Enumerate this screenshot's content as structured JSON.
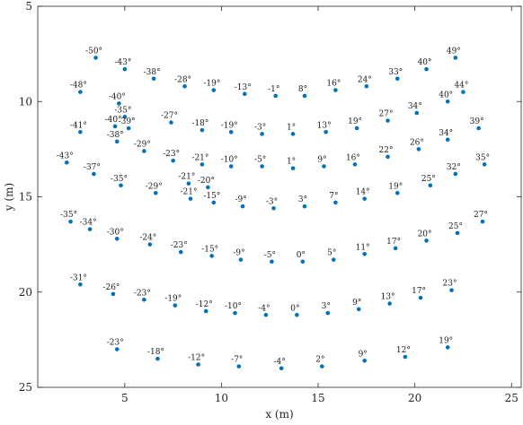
{
  "chart_data": {
    "type": "scatter",
    "title": "",
    "xlabel": "x (m)",
    "ylabel": "y (m)",
    "xlim": [
      0.5,
      25.5
    ],
    "ylim": [
      5,
      25
    ],
    "y_reversed": true,
    "grid": false,
    "legend": "none",
    "marker_color": "#0072BD",
    "xticks": [
      "5",
      "10",
      "15",
      "20",
      "25"
    ],
    "yticks": [
      "5",
      "10",
      "15",
      "20",
      "25"
    ],
    "points": [
      {
        "x": 3.5,
        "y": 7.7,
        "label": "-50°"
      },
      {
        "x": 5.0,
        "y": 8.3,
        "label": "-43°"
      },
      {
        "x": 6.5,
        "y": 8.8,
        "label": "-38°"
      },
      {
        "x": 8.1,
        "y": 9.2,
        "label": "-28°"
      },
      {
        "x": 9.6,
        "y": 9.4,
        "label": "-19°"
      },
      {
        "x": 11.2,
        "y": 9.6,
        "label": "-13°"
      },
      {
        "x": 12.8,
        "y": 9.7,
        "label": "-1°"
      },
      {
        "x": 14.3,
        "y": 9.7,
        "label": "8°"
      },
      {
        "x": 15.9,
        "y": 9.4,
        "label": "16°"
      },
      {
        "x": 17.5,
        "y": 9.2,
        "label": "24°"
      },
      {
        "x": 19.1,
        "y": 8.8,
        "label": "33°"
      },
      {
        "x": 20.6,
        "y": 8.3,
        "label": "40°"
      },
      {
        "x": 22.1,
        "y": 7.7,
        "label": "49°"
      },
      {
        "x": 2.7,
        "y": 9.5,
        "label": "-48°"
      },
      {
        "x": 4.7,
        "y": 10.1,
        "label": "-40°"
      },
      {
        "x": 5.0,
        "y": 10.8,
        "label": "-35°"
      },
      {
        "x": 4.5,
        "y": 11.3,
        "label": "-40°"
      },
      {
        "x": 5.2,
        "y": 11.4,
        "label": "-39°"
      },
      {
        "x": 2.7,
        "y": 11.6,
        "label": "-41°"
      },
      {
        "x": 4.6,
        "y": 12.1,
        "label": "-38°"
      },
      {
        "x": 7.4,
        "y": 11.1,
        "label": "-27°"
      },
      {
        "x": 9.0,
        "y": 11.5,
        "label": "-18°"
      },
      {
        "x": 10.5,
        "y": 11.6,
        "label": "-19°"
      },
      {
        "x": 12.1,
        "y": 11.7,
        "label": "-3°"
      },
      {
        "x": 13.7,
        "y": 11.7,
        "label": "1°"
      },
      {
        "x": 15.4,
        "y": 11.6,
        "label": "13°"
      },
      {
        "x": 17.0,
        "y": 11.4,
        "label": "19°"
      },
      {
        "x": 18.6,
        "y": 11.0,
        "label": "27°"
      },
      {
        "x": 20.1,
        "y": 10.6,
        "label": "34°"
      },
      {
        "x": 21.7,
        "y": 10.0,
        "label": "40°"
      },
      {
        "x": 22.5,
        "y": 9.5,
        "label": "44°"
      },
      {
        "x": 23.3,
        "y": 11.4,
        "label": "39°"
      },
      {
        "x": 21.7,
        "y": 12.0,
        "label": "34°"
      },
      {
        "x": 2.0,
        "y": 13.2,
        "label": "-43°"
      },
      {
        "x": 3.4,
        "y": 13.8,
        "label": "-37°"
      },
      {
        "x": 6.0,
        "y": 12.6,
        "label": "-29°"
      },
      {
        "x": 7.5,
        "y": 13.1,
        "label": "-23°"
      },
      {
        "x": 9.0,
        "y": 13.3,
        "label": "-21°"
      },
      {
        "x": 10.5,
        "y": 13.4,
        "label": "-10°"
      },
      {
        "x": 12.1,
        "y": 13.4,
        "label": "-5°"
      },
      {
        "x": 13.7,
        "y": 13.5,
        "label": "1°"
      },
      {
        "x": 15.3,
        "y": 13.4,
        "label": "9°"
      },
      {
        "x": 16.9,
        "y": 13.3,
        "label": "16°"
      },
      {
        "x": 18.6,
        "y": 12.9,
        "label": "22°"
      },
      {
        "x": 20.2,
        "y": 12.5,
        "label": "26°"
      },
      {
        "x": 22.1,
        "y": 13.8,
        "label": "32°"
      },
      {
        "x": 23.6,
        "y": 13.3,
        "label": "35°"
      },
      {
        "x": 4.8,
        "y": 14.4,
        "label": "-35°"
      },
      {
        "x": 6.6,
        "y": 14.8,
        "label": "-29°"
      },
      {
        "x": 8.3,
        "y": 14.3,
        "label": "-21°"
      },
      {
        "x": 9.3,
        "y": 14.5,
        "label": "-20°"
      },
      {
        "x": 8.4,
        "y": 15.1,
        "label": "-21°"
      },
      {
        "x": 9.6,
        "y": 15.3,
        "label": "-15°"
      },
      {
        "x": 11.1,
        "y": 15.5,
        "label": "-9°"
      },
      {
        "x": 12.7,
        "y": 15.6,
        "label": "-3°"
      },
      {
        "x": 14.3,
        "y": 15.5,
        "label": "3°"
      },
      {
        "x": 15.9,
        "y": 15.3,
        "label": "7°"
      },
      {
        "x": 17.4,
        "y": 15.1,
        "label": "14°"
      },
      {
        "x": 19.1,
        "y": 14.8,
        "label": "19°"
      },
      {
        "x": 20.8,
        "y": 14.4,
        "label": "25°"
      },
      {
        "x": 2.2,
        "y": 16.3,
        "label": "-35°"
      },
      {
        "x": 3.2,
        "y": 16.7,
        "label": "-34°"
      },
      {
        "x": 4.6,
        "y": 17.2,
        "label": "-30°"
      },
      {
        "x": 6.3,
        "y": 17.5,
        "label": "-24°"
      },
      {
        "x": 7.9,
        "y": 17.9,
        "label": "-23°"
      },
      {
        "x": 9.5,
        "y": 18.1,
        "label": "-15°"
      },
      {
        "x": 11.0,
        "y": 18.3,
        "label": "-9°"
      },
      {
        "x": 12.6,
        "y": 18.4,
        "label": "-5°"
      },
      {
        "x": 14.2,
        "y": 18.4,
        "label": "0°"
      },
      {
        "x": 15.8,
        "y": 18.3,
        "label": "5°"
      },
      {
        "x": 17.4,
        "y": 18.0,
        "label": "11°"
      },
      {
        "x": 19.0,
        "y": 17.7,
        "label": "17°"
      },
      {
        "x": 20.6,
        "y": 17.3,
        "label": "20°"
      },
      {
        "x": 22.2,
        "y": 16.9,
        "label": "25°"
      },
      {
        "x": 23.5,
        "y": 16.3,
        "label": "27°"
      },
      {
        "x": 2.7,
        "y": 19.6,
        "label": "-31°"
      },
      {
        "x": 4.4,
        "y": 20.1,
        "label": "-26°"
      },
      {
        "x": 6.0,
        "y": 20.4,
        "label": "-23°"
      },
      {
        "x": 7.6,
        "y": 20.7,
        "label": "-19°"
      },
      {
        "x": 9.2,
        "y": 21.0,
        "label": "-12°"
      },
      {
        "x": 10.7,
        "y": 21.1,
        "label": "-10°"
      },
      {
        "x": 12.3,
        "y": 21.2,
        "label": "-4°"
      },
      {
        "x": 13.9,
        "y": 21.2,
        "label": "0°"
      },
      {
        "x": 15.5,
        "y": 21.1,
        "label": "3°"
      },
      {
        "x": 17.1,
        "y": 20.9,
        "label": "9°"
      },
      {
        "x": 18.7,
        "y": 20.6,
        "label": "13°"
      },
      {
        "x": 20.3,
        "y": 20.3,
        "label": "17°"
      },
      {
        "x": 21.9,
        "y": 19.9,
        "label": "23°"
      },
      {
        "x": 4.6,
        "y": 23.0,
        "label": "-23°"
      },
      {
        "x": 6.7,
        "y": 23.5,
        "label": "-18°"
      },
      {
        "x": 8.8,
        "y": 23.8,
        "label": "-12°"
      },
      {
        "x": 10.9,
        "y": 23.9,
        "label": "-7°"
      },
      {
        "x": 13.1,
        "y": 24.0,
        "label": "-4°"
      },
      {
        "x": 15.2,
        "y": 23.9,
        "label": "2°"
      },
      {
        "x": 17.4,
        "y": 23.6,
        "label": "9°"
      },
      {
        "x": 19.5,
        "y": 23.4,
        "label": "12°"
      },
      {
        "x": 21.7,
        "y": 22.9,
        "label": "19°"
      }
    ]
  }
}
